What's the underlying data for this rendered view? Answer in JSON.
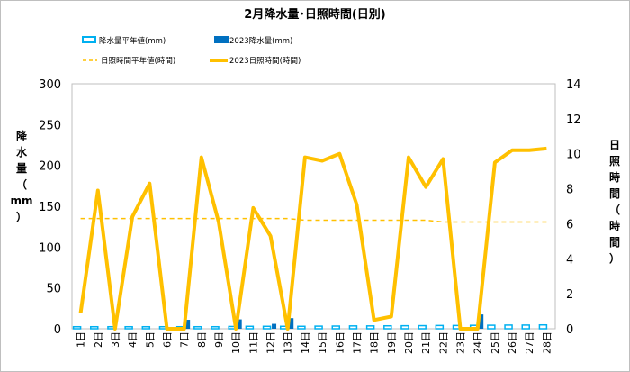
{
  "chart_data": {
    "type": "bar+line",
    "title": "2月降水量･日照時間(日別)",
    "categories": [
      "1日",
      "2日",
      "3日",
      "4日",
      "5日",
      "6日",
      "7日",
      "8日",
      "9日",
      "10日",
      "11日",
      "12日",
      "13日",
      "14日",
      "15日",
      "16日",
      "17日",
      "18日",
      "19日",
      "20日",
      "21日",
      "22日",
      "23日",
      "24日",
      "25日",
      "26日",
      "27日",
      "28日"
    ],
    "left_axis": {
      "label_chars": [
        "降",
        "水",
        "量",
        "（",
        "mm",
        "）"
      ],
      "ylim": [
        0,
        300
      ],
      "ticks": [
        0,
        50,
        100,
        150,
        200,
        250,
        300
      ]
    },
    "right_axis": {
      "label_chars": [
        "日",
        "照",
        "時",
        "間",
        "（",
        "時",
        "間",
        "）"
      ],
      "ylim": [
        0,
        14
      ],
      "ticks": [
        0,
        2,
        4,
        6,
        8,
        10,
        12,
        14
      ]
    },
    "series": [
      {
        "name": "降水量平年値(mm)",
        "type": "bar",
        "axis": "left",
        "style": "outline",
        "color": "#00b0f0",
        "values": [
          2.5,
          2.5,
          2.5,
          2.5,
          2.5,
          2.5,
          2.5,
          2.5,
          2.5,
          2.8,
          3,
          3,
          3,
          3,
          3.2,
          3.3,
          3.5,
          3.5,
          3.6,
          3.7,
          3.8,
          4,
          4,
          4.2,
          4.3,
          4.5,
          4.5,
          4.7
        ]
      },
      {
        "name": "2023降水量(mm)",
        "type": "bar",
        "axis": "left",
        "style": "solid",
        "color": "#0070c0",
        "values": [
          0,
          0,
          0,
          0,
          0,
          0,
          11,
          0,
          0,
          11.5,
          0,
          6,
          13,
          0,
          0,
          0,
          0,
          0,
          0,
          0,
          0,
          0,
          0,
          17.5,
          0,
          0,
          0,
          0
        ]
      },
      {
        "name": "日照時間平年値(時間)",
        "type": "line",
        "axis": "right",
        "style": "dashed",
        "color": "#ffc000",
        "values": [
          6.3,
          6.3,
          6.3,
          6.3,
          6.3,
          6.3,
          6.3,
          6.3,
          6.3,
          6.3,
          6.3,
          6.3,
          6.3,
          6.2,
          6.2,
          6.2,
          6.2,
          6.2,
          6.2,
          6.2,
          6.2,
          6.1,
          6.1,
          6.1,
          6.1,
          6.1,
          6.1,
          6.1
        ]
      },
      {
        "name": "2023日照時間(時間)",
        "type": "line",
        "axis": "right",
        "style": "solid",
        "color": "#ffc000",
        "values": [
          0.9,
          7.9,
          0,
          6.4,
          8.3,
          0,
          0,
          9.8,
          6.1,
          0,
          6.9,
          5.3,
          0,
          9.8,
          9.6,
          10,
          7.1,
          0.5,
          0.7,
          9.8,
          8.1,
          9.7,
          0,
          0,
          9.5,
          10.2,
          10.2,
          10.3
        ]
      }
    ],
    "grid": false
  }
}
